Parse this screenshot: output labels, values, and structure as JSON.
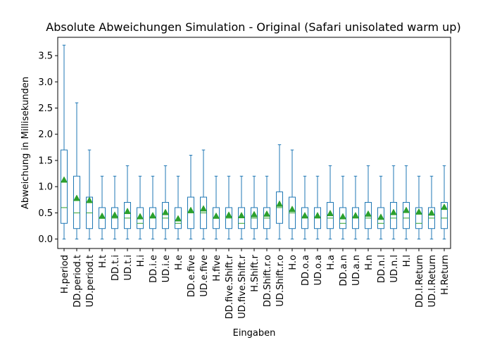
{
  "chart_data": {
    "type": "box",
    "title": "Absolute Abweichungen Simulation - Original (Safari unisolated warm up)",
    "xlabel": "Eingaben",
    "ylabel": "Abweichung in Millisekunden",
    "ylim": [
      -0.18,
      3.85
    ],
    "yticks": [
      "0.0",
      "0.5",
      "1.0",
      "1.5",
      "2.0",
      "2.5",
      "3.0",
      "3.5"
    ],
    "colors": {
      "box": "#1f77b4",
      "median": "#2ca02c",
      "mean": "#2ca02c"
    },
    "categories": [
      "H.period",
      "DD.period.t",
      "UD.period.t",
      "H.t",
      "DD.t.i",
      "UD.t.i",
      "H.i",
      "DD.i.e",
      "UD.i.e",
      "H.e",
      "DD.e.five",
      "UD.e.five",
      "H.five",
      "DD.five.Shift.r",
      "UD.five.Shift.r",
      "H.Shift.r",
      "DD.Shift.r.o",
      "UD.Shift.r.o",
      "H.o",
      "DD.o.a",
      "UD.o.a",
      "H.a",
      "DD.a.n",
      "UD.a.n",
      "H.n",
      "DD.n.l",
      "UD.n.l",
      "H.l",
      "DD.l.Return",
      "UD.l.Return",
      "H.Return"
    ],
    "boxes": [
      {
        "whislo": 0.0,
        "q1": 0.3,
        "med": 0.6,
        "q3": 1.7,
        "whishi": 3.7,
        "mean": 1.13
      },
      {
        "whislo": 0.0,
        "q1": 0.2,
        "med": 0.5,
        "q3": 1.2,
        "whishi": 2.6,
        "mean": 0.78
      },
      {
        "whislo": 0.0,
        "q1": 0.2,
        "med": 0.5,
        "q3": 0.8,
        "whishi": 1.7,
        "mean": 0.74
      },
      {
        "whislo": 0.0,
        "q1": 0.2,
        "med": 0.4,
        "q3": 0.6,
        "whishi": 1.2,
        "mean": 0.44
      },
      {
        "whislo": 0.0,
        "q1": 0.2,
        "med": 0.4,
        "q3": 0.6,
        "whishi": 1.2,
        "mean": 0.46
      },
      {
        "whislo": 0.0,
        "q1": 0.2,
        "med": 0.4,
        "q3": 0.7,
        "whishi": 1.4,
        "mean": 0.53
      },
      {
        "whislo": 0.0,
        "q1": 0.2,
        "med": 0.3,
        "q3": 0.6,
        "whishi": 1.2,
        "mean": 0.43
      },
      {
        "whislo": 0.0,
        "q1": 0.2,
        "med": 0.4,
        "q3": 0.6,
        "whishi": 1.2,
        "mean": 0.45
      },
      {
        "whislo": 0.0,
        "q1": 0.2,
        "med": 0.4,
        "q3": 0.7,
        "whishi": 1.4,
        "mean": 0.51
      },
      {
        "whislo": 0.0,
        "q1": 0.2,
        "med": 0.3,
        "q3": 0.6,
        "whishi": 1.2,
        "mean": 0.39
      },
      {
        "whislo": 0.0,
        "q1": 0.2,
        "med": 0.5,
        "q3": 0.8,
        "whishi": 1.6,
        "mean": 0.55
      },
      {
        "whislo": 0.0,
        "q1": 0.2,
        "med": 0.5,
        "q3": 0.8,
        "whishi": 1.7,
        "mean": 0.58
      },
      {
        "whislo": 0.0,
        "q1": 0.2,
        "med": 0.4,
        "q3": 0.6,
        "whishi": 1.2,
        "mean": 0.44
      },
      {
        "whislo": 0.0,
        "q1": 0.2,
        "med": 0.4,
        "q3": 0.6,
        "whishi": 1.2,
        "mean": 0.46
      },
      {
        "whislo": 0.0,
        "q1": 0.2,
        "med": 0.3,
        "q3": 0.6,
        "whishi": 1.2,
        "mean": 0.45
      },
      {
        "whislo": 0.0,
        "q1": 0.2,
        "med": 0.4,
        "q3": 0.6,
        "whishi": 1.2,
        "mean": 0.47
      },
      {
        "whislo": 0.0,
        "q1": 0.2,
        "med": 0.4,
        "q3": 0.6,
        "whishi": 1.2,
        "mean": 0.48
      },
      {
        "whislo": 0.0,
        "q1": 0.3,
        "med": 0.6,
        "q3": 0.9,
        "whishi": 1.8,
        "mean": 0.67
      },
      {
        "whislo": 0.0,
        "q1": 0.2,
        "med": 0.5,
        "q3": 0.8,
        "whishi": 1.7,
        "mean": 0.57
      },
      {
        "whislo": 0.0,
        "q1": 0.2,
        "med": 0.4,
        "q3": 0.6,
        "whishi": 1.2,
        "mean": 0.45
      },
      {
        "whislo": 0.0,
        "q1": 0.2,
        "med": 0.4,
        "q3": 0.6,
        "whishi": 1.2,
        "mean": 0.45
      },
      {
        "whislo": 0.0,
        "q1": 0.2,
        "med": 0.4,
        "q3": 0.7,
        "whishi": 1.4,
        "mean": 0.49
      },
      {
        "whislo": 0.0,
        "q1": 0.2,
        "med": 0.3,
        "q3": 0.6,
        "whishi": 1.2,
        "mean": 0.43
      },
      {
        "whislo": 0.0,
        "q1": 0.2,
        "med": 0.4,
        "q3": 0.6,
        "whishi": 1.2,
        "mean": 0.45
      },
      {
        "whislo": 0.0,
        "q1": 0.2,
        "med": 0.4,
        "q3": 0.7,
        "whishi": 1.4,
        "mean": 0.48
      },
      {
        "whislo": 0.0,
        "q1": 0.2,
        "med": 0.3,
        "q3": 0.6,
        "whishi": 1.2,
        "mean": 0.42
      },
      {
        "whislo": 0.0,
        "q1": 0.2,
        "med": 0.4,
        "q3": 0.7,
        "whishi": 1.4,
        "mean": 0.51
      },
      {
        "whislo": 0.0,
        "q1": 0.2,
        "med": 0.4,
        "q3": 0.7,
        "whishi": 1.4,
        "mean": 0.55
      },
      {
        "whislo": 0.0,
        "q1": 0.2,
        "med": 0.3,
        "q3": 0.6,
        "whishi": 1.2,
        "mean": 0.52
      },
      {
        "whislo": 0.0,
        "q1": 0.2,
        "med": 0.4,
        "q3": 0.6,
        "whishi": 1.2,
        "mean": 0.5
      },
      {
        "whislo": 0.0,
        "q1": 0.2,
        "med": 0.4,
        "q3": 0.7,
        "whishi": 1.4,
        "mean": 0.61
      }
    ]
  }
}
